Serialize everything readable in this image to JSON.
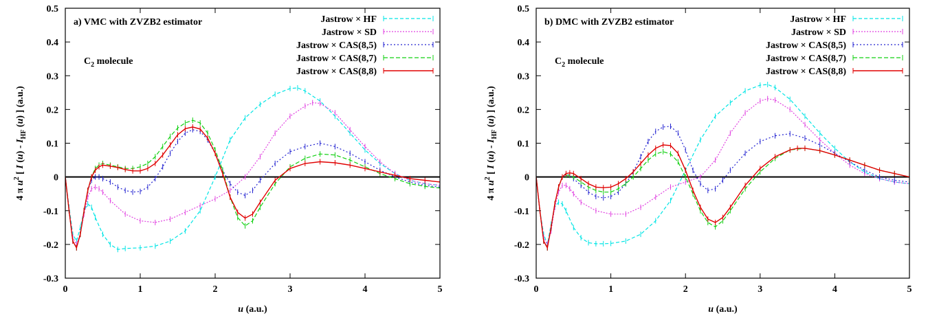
{
  "chart_data": [
    {
      "type": "line",
      "annotation": "a) VMC with ZVZB2 estimator",
      "molecule_label": {
        "main": "C",
        "sub": "2",
        "rest": " molecule"
      },
      "xlabel": "u (a.u.)",
      "ylabel": "4 π u² [ I (u) - I_HF (u) ] (a.u.)",
      "xlim": [
        0,
        5
      ],
      "ylim": [
        -0.3,
        0.5
      ],
      "xticks": [
        "0",
        "1",
        "2",
        "3",
        "4",
        "5"
      ],
      "yticks": [
        "-0.3",
        "-0.2",
        "-0.1",
        "0",
        "0.1",
        "0.2",
        "0.3",
        "0.4",
        "0.5"
      ],
      "grid": false,
      "legend_position": "top-right",
      "series": [
        {
          "name": "Jastrow × HF",
          "color": "#00e5e5",
          "dash": "5,3",
          "x": [
            0,
            0.05,
            0.1,
            0.15,
            0.2,
            0.25,
            0.3,
            0.35,
            0.4,
            0.5,
            0.6,
            0.7,
            0.8,
            1.0,
            1.2,
            1.4,
            1.6,
            1.8,
            2.0,
            2.2,
            2.4,
            2.6,
            2.8,
            3.0,
            3.1,
            3.2,
            3.4,
            3.6,
            3.8,
            4.0,
            4.2,
            4.4,
            4.6,
            4.8,
            5.0
          ],
          "y": [
            0,
            -0.09,
            -0.17,
            -0.19,
            -0.15,
            -0.1,
            -0.08,
            -0.09,
            -0.12,
            -0.17,
            -0.2,
            -0.215,
            -0.212,
            -0.21,
            -0.205,
            -0.19,
            -0.16,
            -0.1,
            0.0,
            0.11,
            0.175,
            0.215,
            0.245,
            0.262,
            0.264,
            0.255,
            0.225,
            0.18,
            0.13,
            0.08,
            0.04,
            0.01,
            -0.01,
            -0.02,
            -0.025
          ]
        },
        {
          "name": "Jastrow × SD",
          "color": "#e040e0",
          "dash": "2,2",
          "x": [
            0,
            0.05,
            0.1,
            0.15,
            0.2,
            0.25,
            0.3,
            0.35,
            0.4,
            0.45,
            0.5,
            0.6,
            0.8,
            1.0,
            1.2,
            1.4,
            1.6,
            1.8,
            2.0,
            2.2,
            2.4,
            2.6,
            2.8,
            3.0,
            3.2,
            3.3,
            3.4,
            3.6,
            3.8,
            4.0,
            4.2,
            4.4,
            4.6,
            4.8,
            5.0
          ],
          "y": [
            0,
            -0.1,
            -0.18,
            -0.2,
            -0.17,
            -0.11,
            -0.06,
            -0.035,
            -0.03,
            -0.035,
            -0.045,
            -0.07,
            -0.11,
            -0.13,
            -0.135,
            -0.125,
            -0.105,
            -0.085,
            -0.065,
            -0.04,
            0.0,
            0.06,
            0.13,
            0.18,
            0.21,
            0.22,
            0.218,
            0.19,
            0.14,
            0.09,
            0.045,
            0.01,
            -0.01,
            -0.02,
            -0.025
          ]
        },
        {
          "name": "Jastrow × CAS(8,5)",
          "color": "#2020d0",
          "dash": "2,3",
          "x": [
            0,
            0.05,
            0.1,
            0.15,
            0.2,
            0.25,
            0.3,
            0.35,
            0.4,
            0.45,
            0.5,
            0.6,
            0.7,
            0.8,
            0.9,
            1.0,
            1.1,
            1.2,
            1.3,
            1.4,
            1.5,
            1.6,
            1.7,
            1.8,
            1.9,
            2.0,
            2.1,
            2.2,
            2.3,
            2.4,
            2.5,
            2.6,
            2.8,
            3.0,
            3.2,
            3.4,
            3.6,
            3.8,
            4.0,
            4.2,
            4.4,
            4.6,
            4.8,
            5.0
          ],
          "y": [
            0,
            -0.1,
            -0.19,
            -0.21,
            -0.17,
            -0.1,
            -0.04,
            -0.01,
            0.0,
            0.0,
            -0.005,
            -0.015,
            -0.03,
            -0.04,
            -0.045,
            -0.043,
            -0.03,
            -0.005,
            0.03,
            0.07,
            0.105,
            0.13,
            0.14,
            0.135,
            0.11,
            0.07,
            0.02,
            -0.02,
            -0.045,
            -0.055,
            -0.04,
            -0.01,
            0.04,
            0.075,
            0.09,
            0.1,
            0.09,
            0.07,
            0.045,
            0.02,
            0.0,
            -0.015,
            -0.025,
            -0.03
          ]
        },
        {
          "name": "Jastrow × CAS(8,7)",
          "color": "#10d010",
          "dash": "6,3",
          "x": [
            0,
            0.05,
            0.1,
            0.15,
            0.2,
            0.25,
            0.3,
            0.35,
            0.4,
            0.45,
            0.5,
            0.6,
            0.7,
            0.8,
            0.9,
            1.0,
            1.1,
            1.2,
            1.3,
            1.4,
            1.5,
            1.6,
            1.7,
            1.8,
            1.9,
            2.0,
            2.1,
            2.2,
            2.3,
            2.4,
            2.5,
            2.6,
            2.8,
            3.0,
            3.2,
            3.4,
            3.6,
            3.8,
            4.0,
            4.2,
            4.4,
            4.6,
            4.8,
            5.0
          ],
          "y": [
            0,
            -0.1,
            -0.19,
            -0.21,
            -0.17,
            -0.1,
            -0.04,
            0.0,
            0.025,
            0.035,
            0.04,
            0.035,
            0.03,
            0.025,
            0.025,
            0.03,
            0.04,
            0.06,
            0.09,
            0.12,
            0.145,
            0.16,
            0.168,
            0.16,
            0.13,
            0.08,
            0.02,
            -0.06,
            -0.12,
            -0.145,
            -0.13,
            -0.09,
            -0.02,
            0.03,
            0.055,
            0.068,
            0.065,
            0.05,
            0.03,
            0.01,
            -0.005,
            -0.02,
            -0.028,
            -0.033
          ]
        },
        {
          "name": "Jastrow × CAS(8,8)",
          "color": "#e00000",
          "dash": "",
          "x": [
            0,
            0.05,
            0.1,
            0.15,
            0.2,
            0.25,
            0.3,
            0.35,
            0.4,
            0.45,
            0.5,
            0.6,
            0.7,
            0.8,
            0.9,
            1.0,
            1.1,
            1.2,
            1.3,
            1.4,
            1.5,
            1.6,
            1.7,
            1.8,
            1.9,
            2.0,
            2.1,
            2.2,
            2.3,
            2.4,
            2.5,
            2.6,
            2.8,
            3.0,
            3.2,
            3.4,
            3.6,
            3.8,
            4.0,
            4.2,
            4.4,
            4.6,
            4.8,
            5.0
          ],
          "y": [
            0,
            -0.1,
            -0.19,
            -0.21,
            -0.17,
            -0.1,
            -0.04,
            0.0,
            0.02,
            0.03,
            0.035,
            0.032,
            0.028,
            0.022,
            0.018,
            0.018,
            0.025,
            0.04,
            0.065,
            0.095,
            0.125,
            0.143,
            0.148,
            0.142,
            0.115,
            0.07,
            0.01,
            -0.06,
            -0.105,
            -0.122,
            -0.11,
            -0.075,
            -0.01,
            0.025,
            0.04,
            0.045,
            0.042,
            0.035,
            0.025,
            0.015,
            0.005,
            -0.005,
            -0.01,
            -0.015
          ]
        }
      ]
    },
    {
      "type": "line",
      "annotation": "b) DMC with ZVZB2 estimator",
      "molecule_label": {
        "main": "C",
        "sub": "2",
        "rest": " molecule"
      },
      "xlabel": "u (a.u.)",
      "ylabel": "4 π u² [ I (u) - I_HF (u) ] (a.u.)",
      "xlim": [
        0,
        5
      ],
      "ylim": [
        -0.3,
        0.5
      ],
      "xticks": [
        "0",
        "1",
        "2",
        "3",
        "4",
        "5"
      ],
      "yticks": [
        "-0.3",
        "-0.2",
        "-0.1",
        "0",
        "0.1",
        "0.2",
        "0.3",
        "0.4",
        "0.5"
      ],
      "grid": false,
      "legend_position": "top-right",
      "series": [
        {
          "name": "Jastrow × HF",
          "color": "#00e5e5",
          "dash": "5,3",
          "x": [
            0,
            0.05,
            0.1,
            0.15,
            0.2,
            0.25,
            0.3,
            0.35,
            0.4,
            0.5,
            0.6,
            0.7,
            0.8,
            0.9,
            1.0,
            1.2,
            1.4,
            1.6,
            1.8,
            2.0,
            2.2,
            2.4,
            2.6,
            2.8,
            3.0,
            3.1,
            3.2,
            3.4,
            3.6,
            3.8,
            4.0,
            4.2,
            4.4,
            4.6,
            4.8,
            5.0
          ],
          "y": [
            0,
            -0.1,
            -0.17,
            -0.2,
            -0.14,
            -0.09,
            -0.075,
            -0.08,
            -0.1,
            -0.15,
            -0.18,
            -0.195,
            -0.198,
            -0.198,
            -0.197,
            -0.19,
            -0.17,
            -0.13,
            -0.07,
            0.02,
            0.11,
            0.18,
            0.22,
            0.255,
            0.272,
            0.274,
            0.265,
            0.23,
            0.18,
            0.13,
            0.085,
            0.045,
            0.015,
            -0.005,
            -0.015,
            -0.02
          ]
        },
        {
          "name": "Jastrow × SD",
          "color": "#e040e0",
          "dash": "2,2",
          "x": [
            0,
            0.05,
            0.1,
            0.15,
            0.2,
            0.25,
            0.3,
            0.35,
            0.4,
            0.45,
            0.5,
            0.6,
            0.8,
            1.0,
            1.2,
            1.4,
            1.6,
            1.8,
            2.0,
            2.2,
            2.4,
            2.6,
            2.8,
            3.0,
            3.1,
            3.2,
            3.4,
            3.6,
            3.8,
            4.0,
            4.2,
            4.4,
            4.6,
            4.8,
            5.0
          ],
          "y": [
            0,
            -0.1,
            -0.18,
            -0.2,
            -0.16,
            -0.09,
            -0.045,
            -0.025,
            -0.025,
            -0.035,
            -0.05,
            -0.075,
            -0.1,
            -0.11,
            -0.11,
            -0.09,
            -0.06,
            -0.03,
            -0.015,
            0.0,
            0.05,
            0.13,
            0.19,
            0.225,
            0.232,
            0.228,
            0.2,
            0.155,
            0.11,
            0.07,
            0.035,
            0.01,
            -0.005,
            -0.015,
            -0.02
          ]
        },
        {
          "name": "Jastrow × CAS(8,5)",
          "color": "#2020d0",
          "dash": "2,3",
          "x": [
            0,
            0.05,
            0.1,
            0.15,
            0.2,
            0.25,
            0.3,
            0.35,
            0.4,
            0.45,
            0.5,
            0.6,
            0.7,
            0.8,
            0.9,
            1.0,
            1.1,
            1.2,
            1.3,
            1.4,
            1.5,
            1.6,
            1.7,
            1.8,
            1.9,
            2.0,
            2.1,
            2.2,
            2.3,
            2.4,
            2.5,
            2.6,
            2.8,
            3.0,
            3.2,
            3.4,
            3.6,
            3.8,
            4.0,
            4.2,
            4.4,
            4.6,
            4.8,
            5.0
          ],
          "y": [
            0,
            -0.1,
            -0.19,
            -0.21,
            -0.15,
            -0.08,
            -0.03,
            0.0,
            0.008,
            0.005,
            -0.005,
            -0.025,
            -0.045,
            -0.058,
            -0.062,
            -0.058,
            -0.045,
            -0.02,
            0.015,
            0.06,
            0.105,
            0.135,
            0.148,
            0.15,
            0.13,
            0.08,
            0.02,
            -0.02,
            -0.04,
            -0.035,
            -0.01,
            0.02,
            0.07,
            0.105,
            0.122,
            0.128,
            0.115,
            0.095,
            0.07,
            0.045,
            0.02,
            0.0,
            -0.01,
            -0.015
          ]
        },
        {
          "name": "Jastrow × CAS(8,7)",
          "color": "#10d010",
          "dash": "6,3",
          "x": [
            0,
            0.05,
            0.1,
            0.15,
            0.2,
            0.25,
            0.3,
            0.35,
            0.4,
            0.45,
            0.5,
            0.6,
            0.7,
            0.8,
            0.9,
            1.0,
            1.1,
            1.2,
            1.3,
            1.4,
            1.5,
            1.6,
            1.7,
            1.8,
            1.9,
            2.0,
            2.1,
            2.2,
            2.3,
            2.4,
            2.5,
            2.6,
            2.8,
            3.0,
            3.2,
            3.4,
            3.6,
            3.8,
            4.0,
            4.2,
            4.4,
            4.6,
            4.8,
            5.0
          ],
          "y": [
            0,
            -0.1,
            -0.19,
            -0.21,
            -0.15,
            -0.08,
            -0.03,
            0.0,
            0.005,
            0.005,
            0.0,
            -0.015,
            -0.03,
            -0.04,
            -0.045,
            -0.045,
            -0.035,
            -0.02,
            0.0,
            0.025,
            0.05,
            0.068,
            0.075,
            0.068,
            0.045,
            0.0,
            -0.05,
            -0.1,
            -0.135,
            -0.148,
            -0.13,
            -0.1,
            -0.035,
            0.015,
            0.055,
            0.08,
            0.085,
            0.078,
            0.065,
            0.05,
            0.035,
            0.02,
            0.01,
            0.0
          ]
        },
        {
          "name": "Jastrow × CAS(8,8)",
          "color": "#e00000",
          "dash": "",
          "x": [
            0,
            0.05,
            0.1,
            0.15,
            0.2,
            0.25,
            0.3,
            0.35,
            0.4,
            0.45,
            0.5,
            0.6,
            0.7,
            0.8,
            0.9,
            1.0,
            1.1,
            1.2,
            1.3,
            1.4,
            1.5,
            1.6,
            1.7,
            1.8,
            1.9,
            2.0,
            2.1,
            2.2,
            2.3,
            2.4,
            2.5,
            2.6,
            2.8,
            3.0,
            3.2,
            3.4,
            3.5,
            3.6,
            3.8,
            4.0,
            4.2,
            4.4,
            4.6,
            4.8,
            5.0
          ],
          "y": [
            0,
            -0.1,
            -0.19,
            -0.21,
            -0.15,
            -0.08,
            -0.03,
            0.0,
            0.01,
            0.012,
            0.01,
            -0.005,
            -0.02,
            -0.03,
            -0.032,
            -0.03,
            -0.02,
            -0.005,
            0.015,
            0.04,
            0.065,
            0.085,
            0.095,
            0.093,
            0.07,
            0.02,
            -0.04,
            -0.09,
            -0.125,
            -0.135,
            -0.12,
            -0.09,
            -0.025,
            0.025,
            0.06,
            0.08,
            0.085,
            0.085,
            0.078,
            0.065,
            0.05,
            0.035,
            0.02,
            0.01,
            0.0
          ]
        }
      ]
    }
  ]
}
